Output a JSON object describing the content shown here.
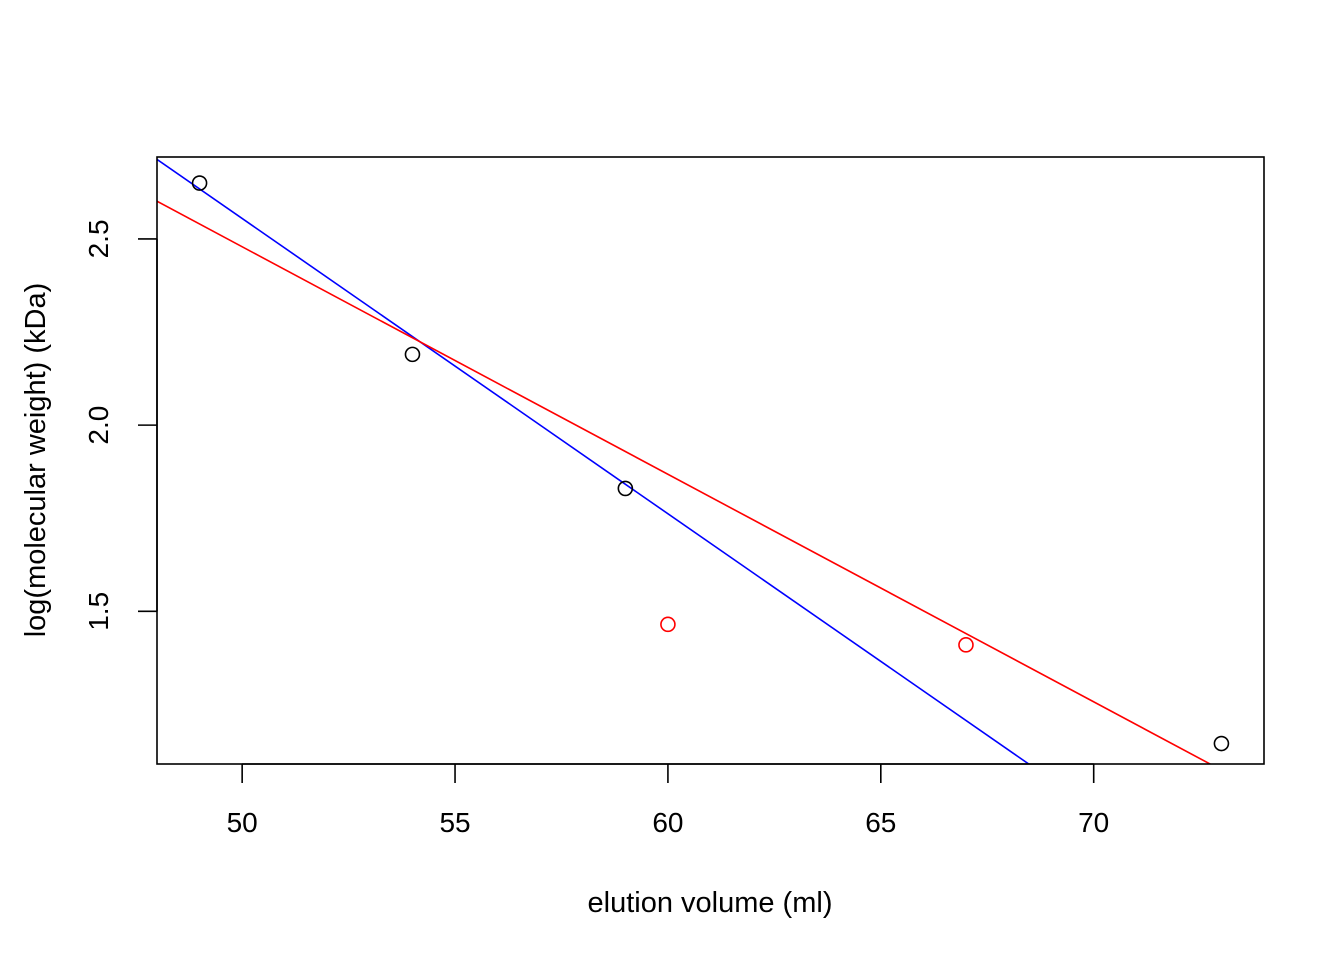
{
  "chart_data": {
    "type": "scatter",
    "title": "",
    "xlabel": "elution volume (ml)",
    "ylabel": "log(molecular weight) (kDa)",
    "xlim": [
      48,
      74
    ],
    "ylim": [
      1.09,
      2.72
    ],
    "x_ticks": [
      50,
      55,
      60,
      65,
      70
    ],
    "y_ticks": [
      1.5,
      2.0,
      2.5
    ],
    "x_tick_labels": [
      "50",
      "55",
      "60",
      "65",
      "70"
    ],
    "y_tick_labels": [
      "1.5",
      "2.0",
      "2.5"
    ],
    "grid": false,
    "legend": "none",
    "points": [
      {
        "x": 49,
        "y": 2.65,
        "color": "#000000"
      },
      {
        "x": 54,
        "y": 2.19,
        "color": "#000000"
      },
      {
        "x": 59,
        "y": 1.83,
        "color": "#000000"
      },
      {
        "x": 60,
        "y": 1.465,
        "color": "#ff0000"
      },
      {
        "x": 67,
        "y": 1.41,
        "color": "#ff0000"
      },
      {
        "x": 73,
        "y": 1.145,
        "color": "#000000"
      }
    ],
    "lines": [
      {
        "color": "#0000ff",
        "intercept": 6.52,
        "slope": -0.0793
      },
      {
        "color": "#ff0000",
        "intercept": 5.534,
        "slope": -0.0611
      }
    ]
  }
}
